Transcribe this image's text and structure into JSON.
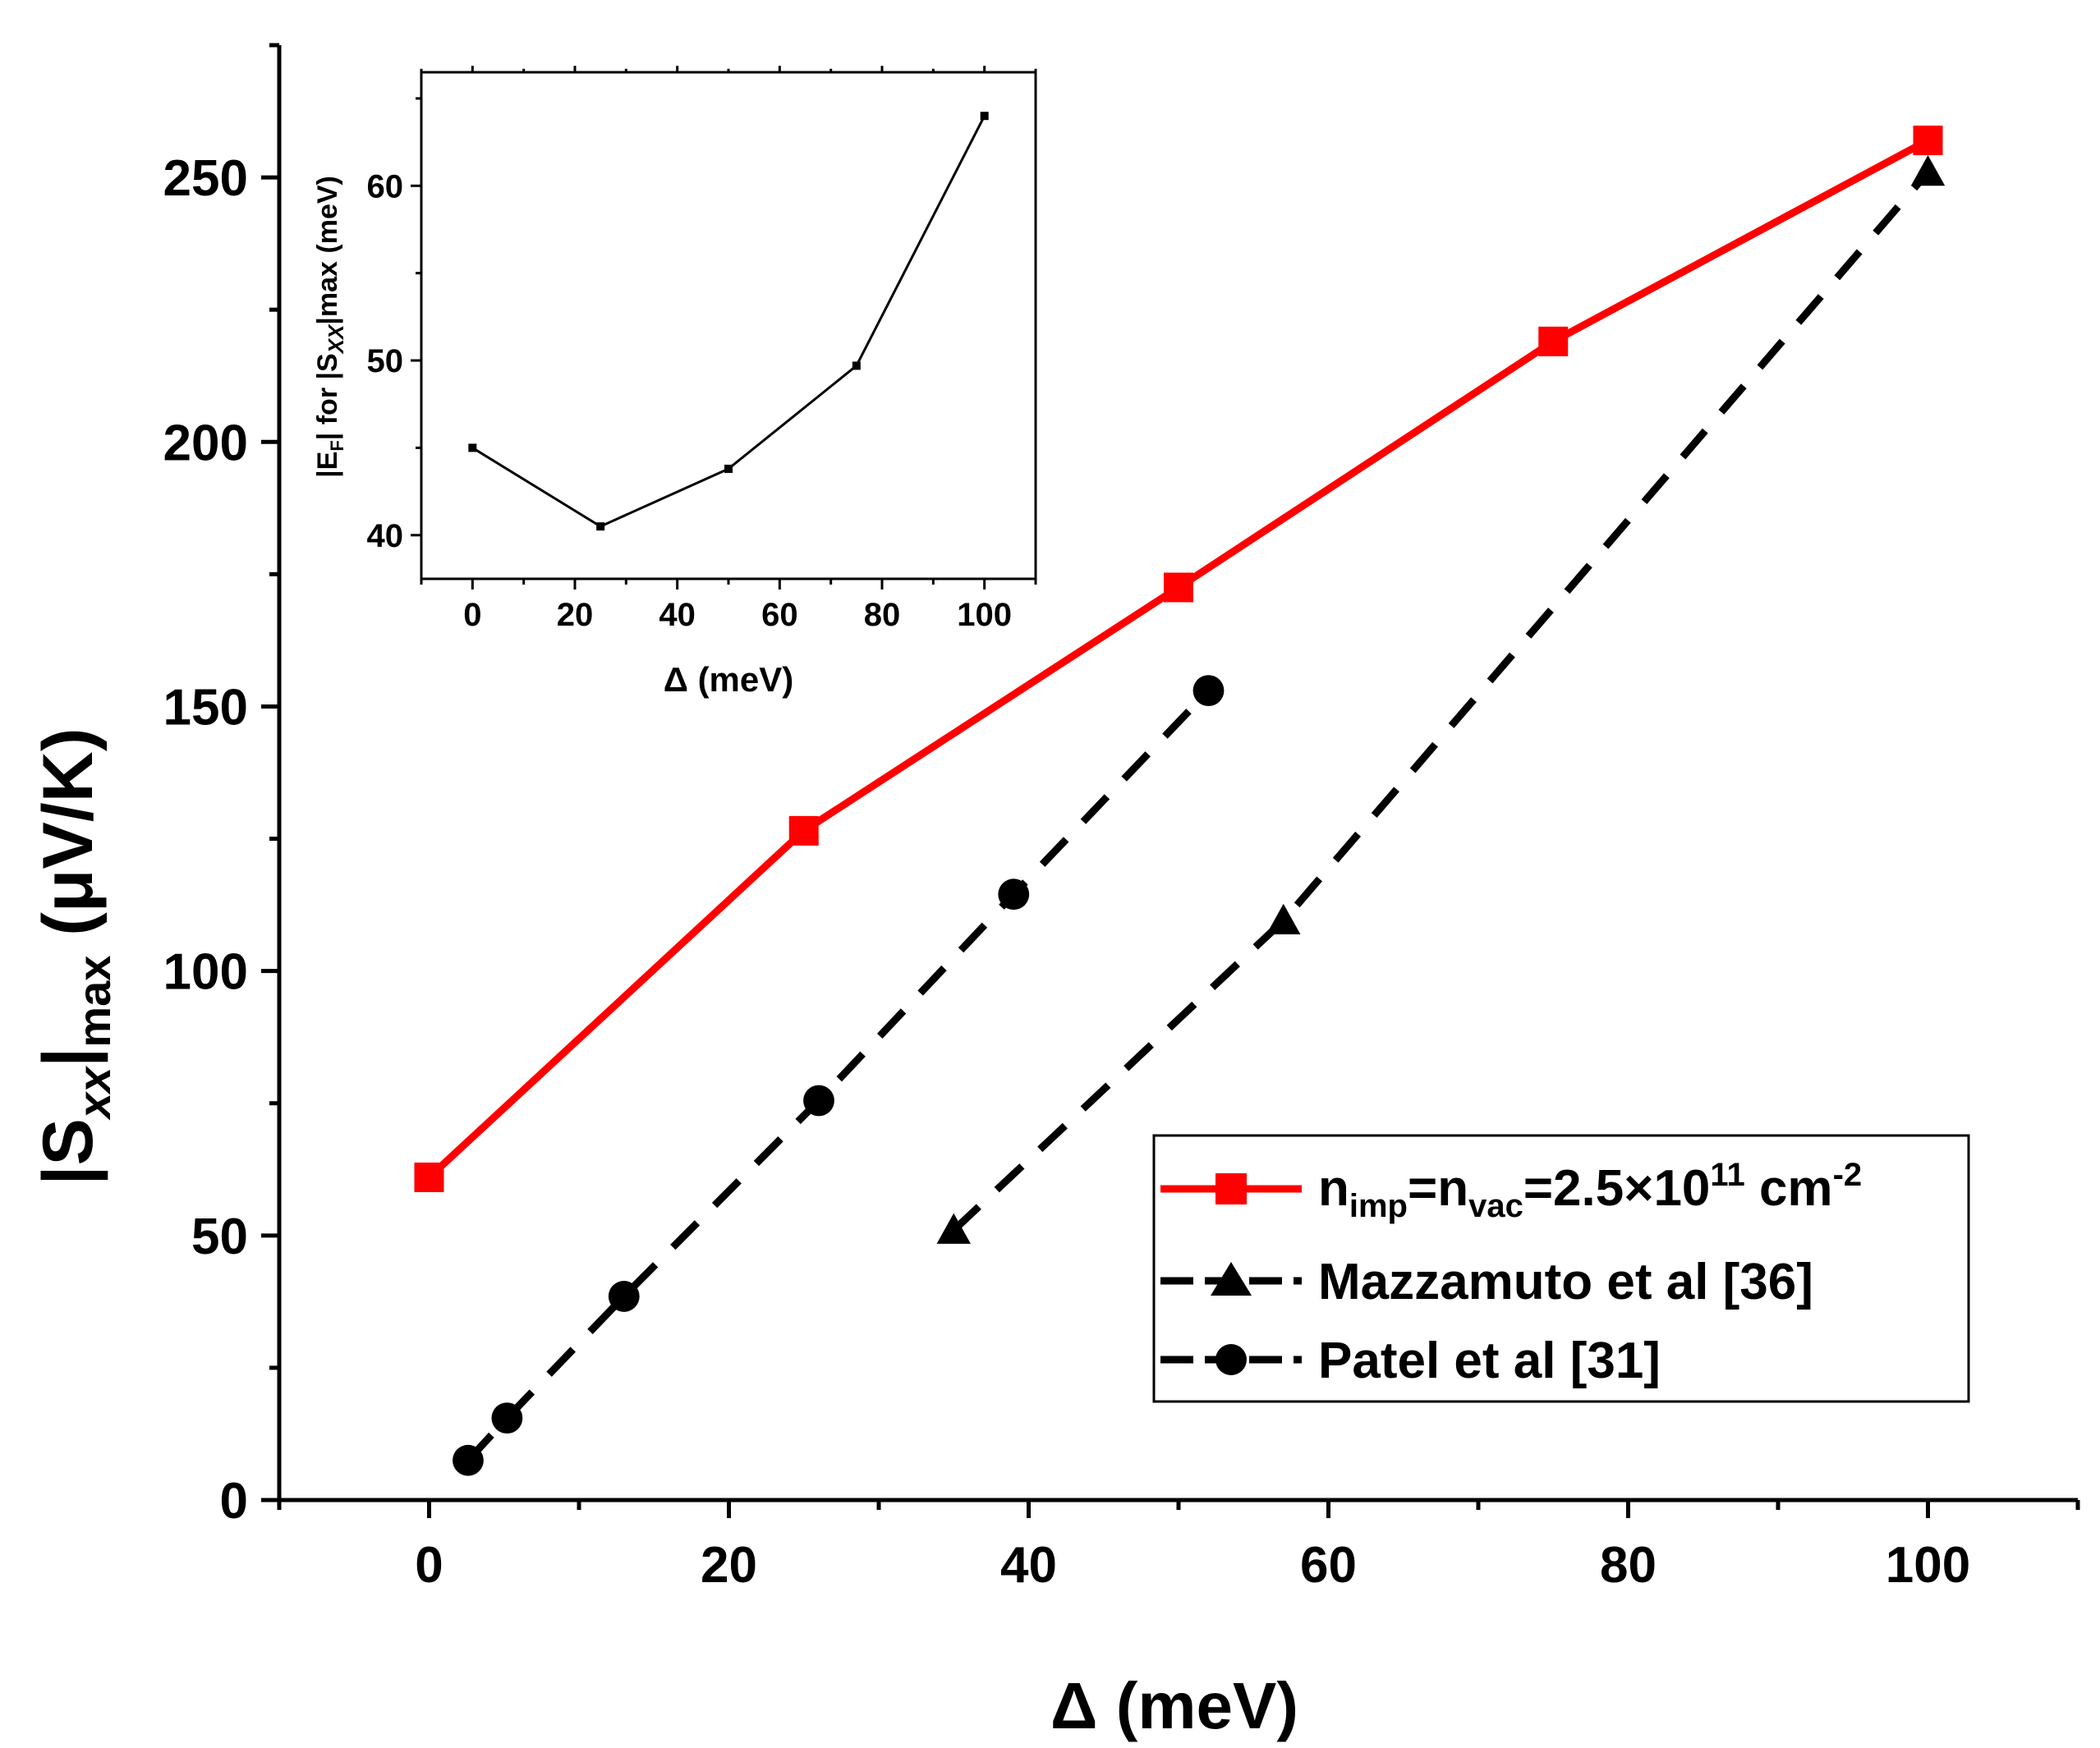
{
  "chart_data": [
    {
      "type": "line",
      "role": "main",
      "xlabel": "Δ (meV)",
      "ylabel": {
        "base": "|S",
        "sub": "xx",
        "mid": "|",
        "sub2": "max",
        "tail": " (μV/K)"
      },
      "xlim": [
        -10,
        110
      ],
      "ylim": [
        0,
        275
      ],
      "xticks": [
        0,
        20,
        40,
        60,
        80,
        100
      ],
      "yticks": [
        0,
        50,
        100,
        150,
        200,
        250
      ],
      "series": [
        {
          "name": "n_imp=n_vac=2.5×10^11 cm^-2",
          "legend": {
            "p1": "n",
            "s1": "imp",
            "p2": "=n",
            "s2": "vac",
            "p3": "=2.5×10",
            "sup1": "11",
            "p4": " cm",
            "sup2": "-2"
          },
          "color": "#ff0000",
          "marker": "square",
          "line": "solid",
          "x": [
            0,
            25,
            50,
            75,
            100
          ],
          "y": [
            61,
            126.5,
            172.5,
            219,
            257
          ]
        },
        {
          "name": "Mazzamuto et al [36]",
          "legend_label": "Mazzamuto et al [36]",
          "color": "#000000",
          "marker": "triangle",
          "line": "dashed",
          "x": [
            35,
            57,
            100
          ],
          "y": [
            51,
            109.5,
            251
          ]
        },
        {
          "name": "Patel et al [31]",
          "legend_label": "Patel et al [31]",
          "color": "#000000",
          "marker": "circle",
          "line": "dashed",
          "x": [
            2.6,
            5.2,
            13,
            26,
            39,
            52
          ],
          "y": [
            7.5,
            15.5,
            38.5,
            75.5,
            114.5,
            153
          ]
        }
      ],
      "legend_position": "bottom-right"
    },
    {
      "type": "line",
      "role": "inset",
      "xlabel": "Δ (meV)",
      "ylabel_parts": {
        "a": "|E",
        "b": "F",
        "c": "| for |S",
        "d": "XX",
        "e": "|max (meV)"
      },
      "xlim": [
        -10,
        110
      ],
      "ylim": [
        37.5,
        66.5
      ],
      "xticks": [
        0,
        20,
        40,
        60,
        80,
        100
      ],
      "yticks": [
        40,
        50,
        60
      ],
      "series": [
        {
          "name": "|E_F| for |S_xx|max",
          "color": "#000000",
          "marker": "square",
          "line": "solid",
          "x": [
            0,
            25,
            50,
            75,
            100
          ],
          "y": [
            45,
            40.5,
            43.8,
            49.7,
            64
          ]
        }
      ]
    }
  ]
}
